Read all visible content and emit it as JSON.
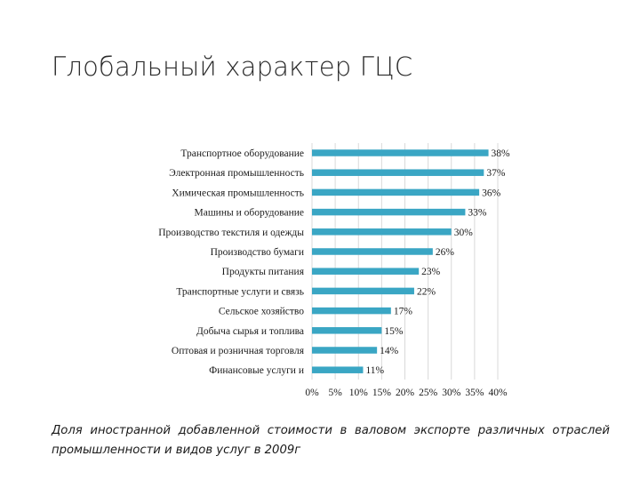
{
  "slide": {
    "title": "Глобальный характер ГЦС",
    "caption": "Доля иностранной добавленной стоимости в валовом экспорте различных отраслей промышленности и видов услуг в 2009г"
  },
  "chart_data": {
    "type": "bar",
    "orientation": "horizontal",
    "categories": [
      "Транспортное оборудование",
      "Электронная промышленность",
      "Химическая промышленность",
      "Машины и оборудование",
      "Производство текстиля и одежды",
      "Производство бумаги",
      "Продукты питания",
      "Транспортные услуги и связь",
      "Сельское хозяйство",
      "Добыча сырья и топлива",
      "Оптовая и розничная торговля",
      "Финансовые услуги и"
    ],
    "values": [
      38,
      37,
      36,
      33,
      30,
      26,
      23,
      22,
      17,
      15,
      14,
      11
    ],
    "value_labels": [
      "38%",
      "37%",
      "36%",
      "33%",
      "30%",
      "26%",
      "23%",
      "22%",
      "17%",
      "15%",
      "14%",
      "11%"
    ],
    "xticks": [
      "0%",
      "5%",
      "10%",
      "15%",
      "20%",
      "25%",
      "30%",
      "35%",
      "40%"
    ],
    "xlim": [
      0,
      40
    ],
    "grid": true,
    "bar_color": "#3aa6c4",
    "grid_color": "#d9d9d9"
  }
}
